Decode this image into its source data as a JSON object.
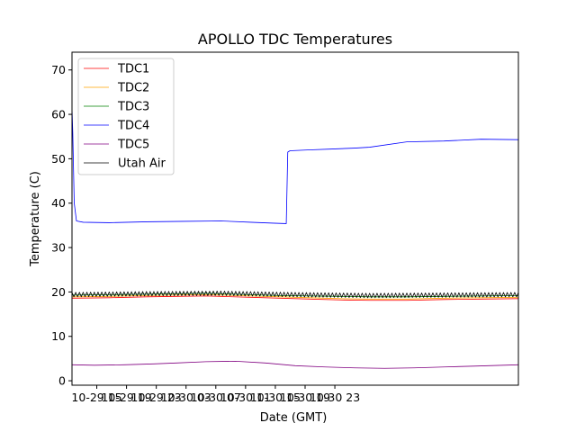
{
  "chart_data": {
    "type": "line",
    "title": "APOLLO TDC Temperatures",
    "xlabel": "Date (GMT)",
    "ylabel": "Temperature (C)",
    "x_unit": "hours since 2014-10-29 11:40 GMT",
    "xlim": [
      0,
      60
    ],
    "ylim": [
      -1,
      74
    ],
    "y_ticks": [
      0,
      10,
      20,
      30,
      40,
      50,
      60,
      70
    ],
    "x_ticks": [
      {
        "value": 3.33,
        "label": "10-29 15"
      },
      {
        "value": 7.33,
        "label": "10-29 19"
      },
      {
        "value": 11.33,
        "label": "10-29 23"
      },
      {
        "value": 15.33,
        "label": "10-30 03"
      },
      {
        "value": 19.33,
        "label": "10-30 07"
      },
      {
        "value": 23.33,
        "label": "10-30 11"
      },
      {
        "value": 27.33,
        "label": "10-30 15"
      },
      {
        "value": 31.33,
        "label": "10-30 19"
      },
      {
        "value": 35.33,
        "label": "10-30 23"
      }
    ],
    "legend_position": "upper-left",
    "series": [
      {
        "name": "TDC1",
        "color": "#ff0000",
        "x": [
          0,
          5,
          10,
          14,
          18,
          20,
          24,
          28,
          32,
          36,
          40,
          45,
          50,
          55,
          60
        ],
        "y": [
          18.6,
          18.7,
          18.9,
          19.0,
          19.1,
          19.0,
          18.8,
          18.6,
          18.4,
          18.2,
          18.1,
          18.1,
          18.3,
          18.4,
          18.5
        ]
      },
      {
        "name": "TDC2",
        "color": "#ffa500",
        "x": [
          0,
          5,
          10,
          14,
          18,
          20,
          24,
          28,
          32,
          36,
          40,
          45,
          50,
          55,
          60
        ],
        "y": [
          18.9,
          19.0,
          19.2,
          19.3,
          19.4,
          19.3,
          19.1,
          18.9,
          18.7,
          18.5,
          18.4,
          18.4,
          18.6,
          18.7,
          18.8
        ]
      },
      {
        "name": "TDC3",
        "color": "#008000",
        "x": [
          0,
          5,
          10,
          14,
          18,
          20,
          24,
          28,
          32,
          36,
          40,
          45,
          50,
          55,
          60
        ],
        "y": [
          19.3,
          19.4,
          19.5,
          19.6,
          19.7,
          19.6,
          19.4,
          19.2,
          19.1,
          19.0,
          18.9,
          18.9,
          19.0,
          19.1,
          19.2
        ]
      },
      {
        "name": "TDC4",
        "color": "#0000ff",
        "x": [
          0,
          0.1,
          0.3,
          0.6,
          1.5,
          5,
          10,
          15,
          20,
          24,
          27,
          28.8,
          29,
          29.3,
          32,
          35,
          38,
          40,
          45,
          50,
          55,
          60
        ],
        "y": [
          61.5,
          56.0,
          40.0,
          36.0,
          35.7,
          35.6,
          35.8,
          35.9,
          36.0,
          35.7,
          35.5,
          35.4,
          51.5,
          51.8,
          52.0,
          52.2,
          52.4,
          52.6,
          53.8,
          54.0,
          54.4,
          54.3
        ]
      },
      {
        "name": "TDC5",
        "color": "#800080",
        "x": [
          0,
          3,
          7,
          11,
          14,
          18,
          22,
          26,
          30,
          34,
          38,
          42,
          46,
          50,
          54,
          58,
          60
        ],
        "y": [
          3.6,
          3.5,
          3.6,
          3.8,
          4.0,
          4.3,
          4.4,
          4.0,
          3.4,
          3.1,
          2.9,
          2.8,
          2.9,
          3.1,
          3.3,
          3.5,
          3.6
        ]
      },
      {
        "name": "Utah Air",
        "color": "#000000",
        "x": [
          0,
          10,
          20,
          30,
          40,
          50,
          60
        ],
        "y": [
          19.4,
          19.6,
          19.7,
          19.4,
          19.2,
          19.3,
          19.4
        ],
        "oscillation_amplitude": 0.5
      }
    ]
  }
}
